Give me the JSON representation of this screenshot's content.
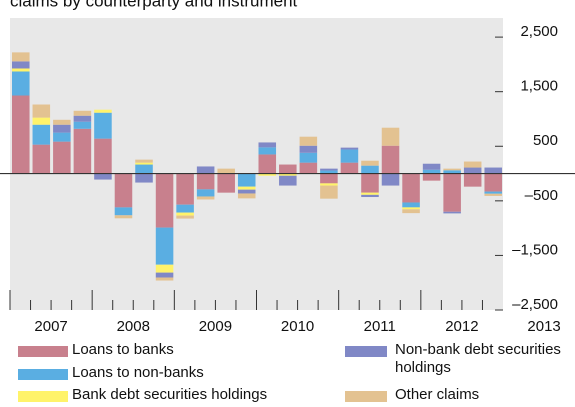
{
  "chart_data": {
    "type": "stacked-bar",
    "title": "claims by counterparty and instrument",
    "categories": [
      null,
      null,
      null,
      null,
      null,
      null,
      null,
      null,
      null,
      null,
      null,
      null,
      null,
      null,
      null,
      null,
      null,
      null,
      null,
      null,
      null,
      null,
      null,
      null
    ],
    "group_labels": [
      "2007",
      "2008",
      "2009",
      "2010",
      "2011",
      "2012",
      "2013"
    ],
    "ylim": [
      -2500,
      2850
    ],
    "yticks": [
      {
        "value": 2500,
        "label": "2,500"
      },
      {
        "value": 1500,
        "label": "1,500"
      },
      500,
      {
        "value": -500,
        "label": "–500"
      },
      {
        "value": -1500,
        "label": "–1,500"
      },
      {
        "value": -2500,
        "label": "–2,500"
      }
    ],
    "series": [
      {
        "name": "Loans to banks",
        "color": "#c8808d",
        "values": [
          1430,
          530,
          585,
          820,
          640,
          -620,
          0,
          -990,
          -570,
          -290,
          -350,
          0,
          350,
          165,
          200,
          -180,
          200,
          -350,
          510,
          -530,
          -130,
          -700,
          -240,
          -330
        ]
      },
      {
        "name": "Loans to non-banks",
        "color": "#5aaee2",
        "values": [
          440,
          365,
          165,
          130,
          475,
          -145,
          165,
          -680,
          -145,
          -130,
          0,
          -240,
          130,
          0,
          180,
          55,
          240,
          145,
          0,
          -90,
          70,
          60,
          0,
          -40
        ]
      },
      {
        "name": "Bank debt securities holdings",
        "color": "#fff36a",
        "values": [
          55,
          130,
          0,
          0,
          55,
          0,
          35,
          -145,
          -55,
          0,
          0,
          -55,
          -40,
          -40,
          0,
          -40,
          0,
          -40,
          0,
          -35,
          0,
          0,
          0,
          0
        ]
      },
      {
        "name": "Non-bank debt securities holdings",
        "color": "#8088c6",
        "values": [
          130,
          0,
          145,
          110,
          -110,
          0,
          -165,
          -90,
          0,
          130,
          0,
          -70,
          90,
          -180,
          130,
          35,
          35,
          -40,
          -220,
          0,
          110,
          -30,
          110,
          110
        ]
      },
      {
        "name": "Other claims",
        "color": "#e3c291",
        "values": [
          165,
          240,
          90,
          90,
          0,
          -55,
          55,
          -55,
          -55,
          -55,
          90,
          -90,
          0,
          0,
          165,
          -240,
          0,
          90,
          330,
          -70,
          0,
          30,
          110,
          -40
        ]
      }
    ]
  }
}
